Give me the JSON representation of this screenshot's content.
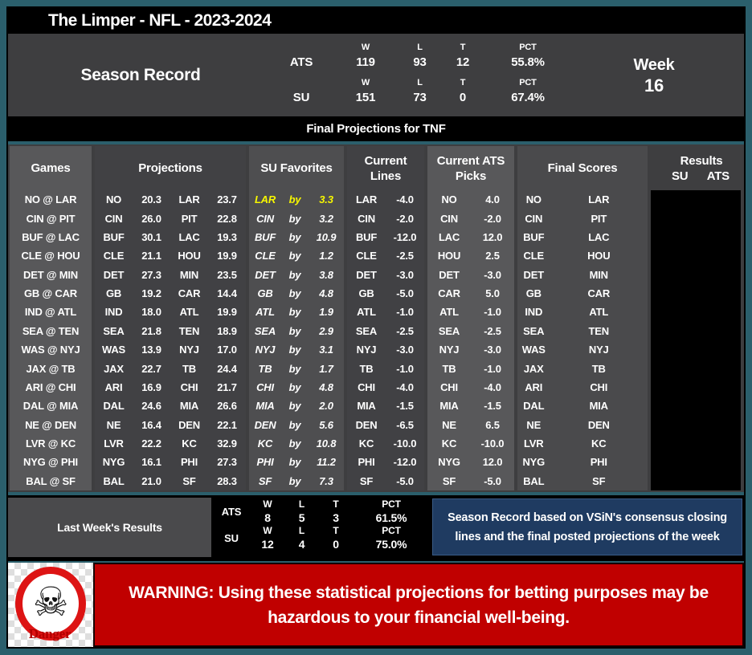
{
  "title": "The Limper - NFL - 2023-2024",
  "season_record": {
    "label": "Season Record",
    "week_label": "Week",
    "week_number": "16",
    "col_headers": [
      "W",
      "L",
      "T",
      "PCT"
    ],
    "rows": [
      {
        "label": "ATS",
        "w": "119",
        "l": "93",
        "t": "12",
        "pct": "55.8%"
      },
      {
        "label": "SU",
        "w": "151",
        "l": "73",
        "t": "0",
        "pct": "67.4%"
      }
    ]
  },
  "banner": "Final Projections for TNF",
  "table": {
    "headers": {
      "games": "Games",
      "projections": "Projections",
      "su_favorites": "SU Favorites",
      "current_lines_1": "Current",
      "current_lines_2": "Lines",
      "current_ats_1": "Current ATS",
      "current_ats_2": "Picks",
      "final_scores": "Final Scores",
      "results": "Results",
      "su": "SU",
      "ats": "ATS"
    },
    "by_label": "by",
    "rows": [
      {
        "game": "NO @ LAR",
        "away": "NO",
        "away_pts": "20.3",
        "home": "LAR",
        "home_pts": "23.7",
        "fav_team": "LAR",
        "fav_margin": "3.3",
        "line_team": "LAR",
        "line_value": "-4.0",
        "pick_team": "NO",
        "pick_value": "4.0",
        "score_away_team": "NO",
        "score_home_team": "LAR",
        "highlight": true
      },
      {
        "game": "CIN @ PIT",
        "away": "CIN",
        "away_pts": "26.0",
        "home": "PIT",
        "home_pts": "22.8",
        "fav_team": "CIN",
        "fav_margin": "3.2",
        "line_team": "CIN",
        "line_value": "-2.0",
        "pick_team": "CIN",
        "pick_value": "-2.0",
        "score_away_team": "CIN",
        "score_home_team": "PIT",
        "highlight": false
      },
      {
        "game": "BUF @ LAC",
        "away": "BUF",
        "away_pts": "30.1",
        "home": "LAC",
        "home_pts": "19.3",
        "fav_team": "BUF",
        "fav_margin": "10.9",
        "line_team": "BUF",
        "line_value": "-12.0",
        "pick_team": "LAC",
        "pick_value": "12.0",
        "score_away_team": "BUF",
        "score_home_team": "LAC",
        "highlight": false
      },
      {
        "game": "CLE @ HOU",
        "away": "CLE",
        "away_pts": "21.1",
        "home": "HOU",
        "home_pts": "19.9",
        "fav_team": "CLE",
        "fav_margin": "1.2",
        "line_team": "CLE",
        "line_value": "-2.5",
        "pick_team": "HOU",
        "pick_value": "2.5",
        "score_away_team": "CLE",
        "score_home_team": "HOU",
        "highlight": false
      },
      {
        "game": "DET @ MIN",
        "away": "DET",
        "away_pts": "27.3",
        "home": "MIN",
        "home_pts": "23.5",
        "fav_team": "DET",
        "fav_margin": "3.8",
        "line_team": "DET",
        "line_value": "-3.0",
        "pick_team": "DET",
        "pick_value": "-3.0",
        "score_away_team": "DET",
        "score_home_team": "MIN",
        "highlight": false
      },
      {
        "game": "GB @ CAR",
        "away": "GB",
        "away_pts": "19.2",
        "home": "CAR",
        "home_pts": "14.4",
        "fav_team": "GB",
        "fav_margin": "4.8",
        "line_team": "GB",
        "line_value": "-5.0",
        "pick_team": "CAR",
        "pick_value": "5.0",
        "score_away_team": "GB",
        "score_home_team": "CAR",
        "highlight": false
      },
      {
        "game": "IND @ ATL",
        "away": "IND",
        "away_pts": "18.0",
        "home": "ATL",
        "home_pts": "19.9",
        "fav_team": "ATL",
        "fav_margin": "1.9",
        "line_team": "ATL",
        "line_value": "-1.0",
        "pick_team": "ATL",
        "pick_value": "-1.0",
        "score_away_team": "IND",
        "score_home_team": "ATL",
        "highlight": false
      },
      {
        "game": "SEA @ TEN",
        "away": "SEA",
        "away_pts": "21.8",
        "home": "TEN",
        "home_pts": "18.9",
        "fav_team": "SEA",
        "fav_margin": "2.9",
        "line_team": "SEA",
        "line_value": "-2.5",
        "pick_team": "SEA",
        "pick_value": "-2.5",
        "score_away_team": "SEA",
        "score_home_team": "TEN",
        "highlight": false
      },
      {
        "game": "WAS @ NYJ",
        "away": "WAS",
        "away_pts": "13.9",
        "home": "NYJ",
        "home_pts": "17.0",
        "fav_team": "NYJ",
        "fav_margin": "3.1",
        "line_team": "NYJ",
        "line_value": "-3.0",
        "pick_team": "NYJ",
        "pick_value": "-3.0",
        "score_away_team": "WAS",
        "score_home_team": "NYJ",
        "highlight": false
      },
      {
        "game": "JAX @ TB",
        "away": "JAX",
        "away_pts": "22.7",
        "home": "TB",
        "home_pts": "24.4",
        "fav_team": "TB",
        "fav_margin": "1.7",
        "line_team": "TB",
        "line_value": "-1.0",
        "pick_team": "TB",
        "pick_value": "-1.0",
        "score_away_team": "JAX",
        "score_home_team": "TB",
        "highlight": false
      },
      {
        "game": "ARI @ CHI",
        "away": "ARI",
        "away_pts": "16.9",
        "home": "CHI",
        "home_pts": "21.7",
        "fav_team": "CHI",
        "fav_margin": "4.8",
        "line_team": "CHI",
        "line_value": "-4.0",
        "pick_team": "CHI",
        "pick_value": "-4.0",
        "score_away_team": "ARI",
        "score_home_team": "CHI",
        "highlight": false
      },
      {
        "game": "DAL @ MIA",
        "away": "DAL",
        "away_pts": "24.6",
        "home": "MIA",
        "home_pts": "26.6",
        "fav_team": "MIA",
        "fav_margin": "2.0",
        "line_team": "MIA",
        "line_value": "-1.5",
        "pick_team": "MIA",
        "pick_value": "-1.5",
        "score_away_team": "DAL",
        "score_home_team": "MIA",
        "highlight": false
      },
      {
        "game": "NE @ DEN",
        "away": "NE",
        "away_pts": "16.4",
        "home": "DEN",
        "home_pts": "22.1",
        "fav_team": "DEN",
        "fav_margin": "5.6",
        "line_team": "DEN",
        "line_value": "-6.5",
        "pick_team": "NE",
        "pick_value": "6.5",
        "score_away_team": "NE",
        "score_home_team": "DEN",
        "highlight": false
      },
      {
        "game": "LVR @ KC",
        "away": "LVR",
        "away_pts": "22.2",
        "home": "KC",
        "home_pts": "32.9",
        "fav_team": "KC",
        "fav_margin": "10.8",
        "line_team": "KC",
        "line_value": "-10.0",
        "pick_team": "KC",
        "pick_value": "-10.0",
        "score_away_team": "LVR",
        "score_home_team": "KC",
        "highlight": false
      },
      {
        "game": "NYG @ PHI",
        "away": "NYG",
        "away_pts": "16.1",
        "home": "PHI",
        "home_pts": "27.3",
        "fav_team": "PHI",
        "fav_margin": "11.2",
        "line_team": "PHI",
        "line_value": "-12.0",
        "pick_team": "NYG",
        "pick_value": "12.0",
        "score_away_team": "NYG",
        "score_home_team": "PHI",
        "highlight": false
      },
      {
        "game": "BAL @ SF",
        "away": "BAL",
        "away_pts": "21.0",
        "home": "SF",
        "home_pts": "28.3",
        "fav_team": "SF",
        "fav_margin": "7.3",
        "line_team": "SF",
        "line_value": "-5.0",
        "pick_team": "SF",
        "pick_value": "-5.0",
        "score_away_team": "BAL",
        "score_home_team": "SF",
        "highlight": false
      }
    ]
  },
  "last_week": {
    "label": "Last Week's Results",
    "col_headers": [
      "W",
      "L",
      "T",
      "PCT"
    ],
    "rows": [
      {
        "label": "ATS",
        "w": "8",
        "l": "5",
        "t": "3",
        "pct": "61.5%"
      },
      {
        "label": "SU",
        "w": "12",
        "l": "4",
        "t": "0",
        "pct": "75.0%"
      }
    ]
  },
  "note": {
    "line1": "Season Record based on VSiN's consensus closing",
    "line2": "lines and the final posted projections of the week"
  },
  "warning": {
    "line1": "WARNING: Using these statistical projections for betting purposes may be",
    "line2": "hazardous to your financial well-being.",
    "danger_label": "Danger",
    "skull_glyph": "☠"
  },
  "colors": {
    "teal_border": "#2B5F6C",
    "panel_gray": "#3E3E40",
    "block_light": "#58585A",
    "block_mid": "#4A4A4C",
    "block_dark": "#414144",
    "block_sufav": "#4E4E50",
    "highlight_yellow": "#F7F700",
    "warning_red": "#C00000",
    "note_navy": "#1F3B61",
    "danger_ring_red": "#DD1414",
    "black": "#000000"
  }
}
